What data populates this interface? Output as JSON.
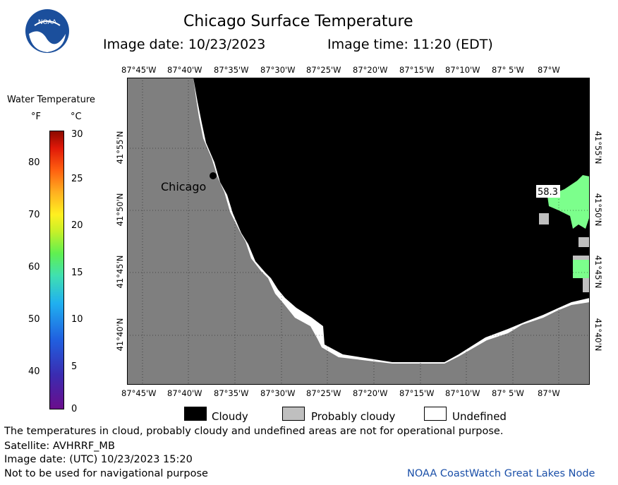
{
  "header": {
    "title": "Chicago Surface Temperature",
    "image_date": "Image date: 10/23/2023",
    "image_time": "Image time: 11:20 (EDT)",
    "logo_text": "NOAA",
    "logo_icon": "noaa-logo-icon"
  },
  "scale": {
    "title": "Water Temperature",
    "unit_f": "°F",
    "unit_c": "°C",
    "f_ticks": [
      "80",
      "70",
      "60",
      "50",
      "40"
    ],
    "c_ticks": [
      "30",
      "25",
      "20",
      "15",
      "10",
      "5",
      "0"
    ]
  },
  "axes": {
    "lon_ticks": [
      "87°45'W",
      "87°40'W",
      "87°35'W",
      "87°30'W",
      "87°25'W",
      "87°20'W",
      "87°15'W",
      "87°10'W",
      "87° 5'W",
      "87°W"
    ],
    "lat_ticks": [
      "41°55'N",
      "41°50'N",
      "41°45'N",
      "41°40'N"
    ]
  },
  "map": {
    "city_label": "Chicago",
    "temperature_label": "58.3",
    "colors": {
      "land": "#7f7f7f",
      "cloudy": "#000000",
      "probably_cloudy": "#bfbfbf",
      "undefined": "#ffffff",
      "warm_water": "#7cff8c"
    }
  },
  "legend": {
    "cloudy": "Cloudy",
    "probably_cloudy": "Probably cloudy",
    "undefined": "Undefined"
  },
  "footer": {
    "note": "The temperatures in cloud, probably cloudy and undefined areas are not for operational purpose.",
    "satellite": "Satellite: AVHRRF_MB",
    "utc_date": "Image date: (UTC) 10/23/2023  15:20",
    "nav_warning": "Not to be used for navigational purpose",
    "credit": "NOAA CoastWatch Great Lakes Node"
  }
}
